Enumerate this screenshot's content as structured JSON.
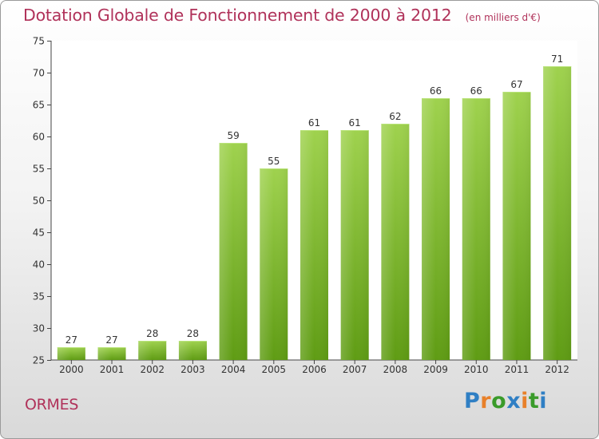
{
  "chart_data": {
    "type": "bar",
    "title": "Dotation Globale de Fonctionnement de 2000 à 2012",
    "subtitle": "(en milliers d'€)",
    "categories": [
      "2000",
      "2001",
      "2002",
      "2003",
      "2004",
      "2005",
      "2006",
      "2007",
      "2008",
      "2009",
      "2010",
      "2011",
      "2012"
    ],
    "values": [
      27,
      27,
      28,
      28,
      59,
      55,
      61,
      61,
      62,
      66,
      66,
      67,
      71
    ],
    "ylim": [
      25,
      75
    ],
    "yticks": [
      25,
      30,
      35,
      40,
      45,
      50,
      55,
      60,
      65,
      70,
      75
    ],
    "grid": false,
    "bar_color_top": "#9fd24e",
    "bar_color_bottom": "#5f9c14"
  },
  "footer": {
    "commune": "ORMES",
    "brand": "Proxiti",
    "brand_colors": [
      "#2f7fc4",
      "#e8802a",
      "#3a9b2a",
      "#2f7fc4",
      "#e8802a",
      "#3a9b2a",
      "#2f7fc4"
    ]
  }
}
